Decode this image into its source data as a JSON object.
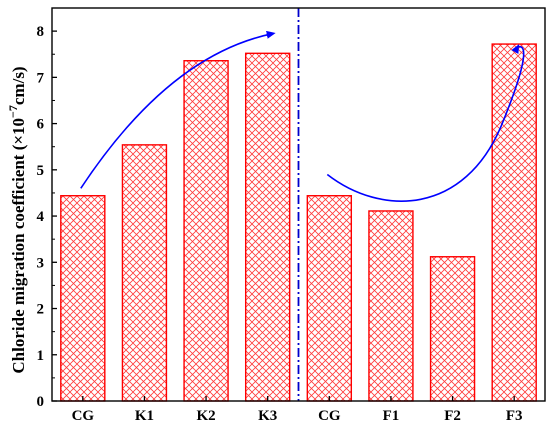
{
  "chart_data": {
    "type": "bar",
    "categories": [
      "CG",
      "K1",
      "K2",
      "K3",
      "CG",
      "F1",
      "F2",
      "F3"
    ],
    "values": [
      4.44,
      5.54,
      7.36,
      7.52,
      4.44,
      4.11,
      3.12,
      7.72
    ],
    "ylim": [
      0,
      8.5
    ],
    "yticks": [
      "0",
      "1",
      "2",
      "3",
      "4",
      "5",
      "6",
      "7",
      "8"
    ],
    "ylabel": {
      "main": "Chloride migration coefficient (×10",
      "exp": "−7",
      "tail": "cm/s)"
    },
    "xlabel": "",
    "grid": false,
    "legend": "none",
    "bar_fill_pattern": "red crosshatch",
    "colors": {
      "bar": "#ff0000",
      "arrow": "#0000ff",
      "divider": "#0000cc",
      "axis": "#000000"
    },
    "annotations": [
      "blue curved arrow rising over CG, K1, K2, K3",
      "blue dash-dot vertical divider between K3 and CG",
      "blue U-shaped arrow over CG, F1, F2, F3"
    ]
  }
}
